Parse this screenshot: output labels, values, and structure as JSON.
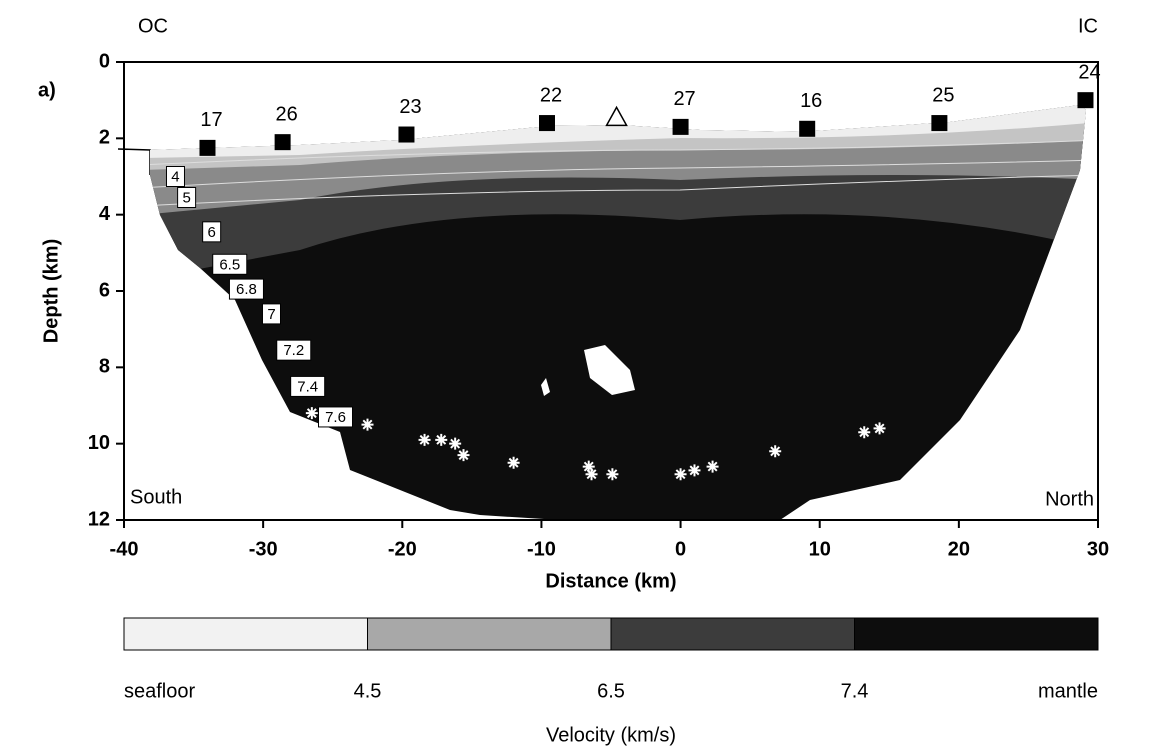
{
  "chart_data": {
    "type": "velocity-section",
    "panel_label": "a)",
    "corner_labels": {
      "top_left": "OC",
      "top_right": "IC",
      "bottom_left": "South",
      "bottom_right": "North"
    },
    "xlabel": "Distance (km)",
    "ylabel": "Depth (km)",
    "xlim": [
      -40,
      30
    ],
    "xticks": [
      -40,
      -30,
      -20,
      -10,
      0,
      10,
      20,
      30
    ],
    "ylim": [
      0,
      12
    ],
    "yticks": [
      0,
      2,
      4,
      6,
      8,
      10,
      12
    ],
    "y_inverted": true,
    "stations": [
      {
        "label": "17",
        "x": -34,
        "depth": 2.25
      },
      {
        "label": "26",
        "x": -28.6,
        "depth": 2.1
      },
      {
        "label": "23",
        "x": -19.7,
        "depth": 1.9
      },
      {
        "label": "22",
        "x": -9.6,
        "depth": 1.6
      },
      {
        "label": "27",
        "x": 0,
        "depth": 1.7
      },
      {
        "label": "16",
        "x": 9.1,
        "depth": 1.75
      },
      {
        "label": "25",
        "x": 18.6,
        "depth": 1.6
      },
      {
        "label": "24",
        "x": 29.1,
        "depth": 1.0
      }
    ],
    "triangle": {
      "x": -4.6,
      "depth": 1.45
    },
    "contour_labels": [
      {
        "label": "4",
        "x": -36.3,
        "depth": 3.0
      },
      {
        "label": "5",
        "x": -35.5,
        "depth": 3.55
      },
      {
        "label": "6",
        "x": -33.7,
        "depth": 4.45
      },
      {
        "label": "6.5",
        "x": -32.4,
        "depth": 5.3
      },
      {
        "label": "6.8",
        "x": -31.2,
        "depth": 5.95
      },
      {
        "label": "7",
        "x": -29.4,
        "depth": 6.6
      },
      {
        "label": "7.2",
        "x": -27.8,
        "depth": 7.55
      },
      {
        "label": "7.4",
        "x": -26.8,
        "depth": 8.5
      },
      {
        "label": "7.6",
        "x": -24.8,
        "depth": 9.3
      }
    ],
    "events": [
      {
        "x": -26.5,
        "depth": 9.2
      },
      {
        "x": -22.5,
        "depth": 9.5
      },
      {
        "x": -18.4,
        "depth": 9.9
      },
      {
        "x": -17.2,
        "depth": 9.9
      },
      {
        "x": -16.2,
        "depth": 10.0
      },
      {
        "x": -15.6,
        "depth": 10.3
      },
      {
        "x": -12,
        "depth": 10.5
      },
      {
        "x": -6.6,
        "depth": 10.6
      },
      {
        "x": -6.4,
        "depth": 10.8
      },
      {
        "x": -4.9,
        "depth": 10.8
      },
      {
        "x": 0,
        "depth": 10.8
      },
      {
        "x": 1,
        "depth": 10.7
      },
      {
        "x": 2.3,
        "depth": 10.6
      },
      {
        "x": 6.8,
        "depth": 10.2
      },
      {
        "x": 13.2,
        "depth": 9.7
      },
      {
        "x": 14.3,
        "depth": 9.6
      }
    ],
    "colorbar": {
      "title": "Velocity (km/s)",
      "labels": [
        "seafloor",
        "4.5",
        "6.5",
        "7.4",
        "mantle"
      ],
      "colors": [
        "#f2f2f2",
        "#a8a8a8",
        "#3c3c3c",
        "#0d0d0d"
      ]
    }
  }
}
